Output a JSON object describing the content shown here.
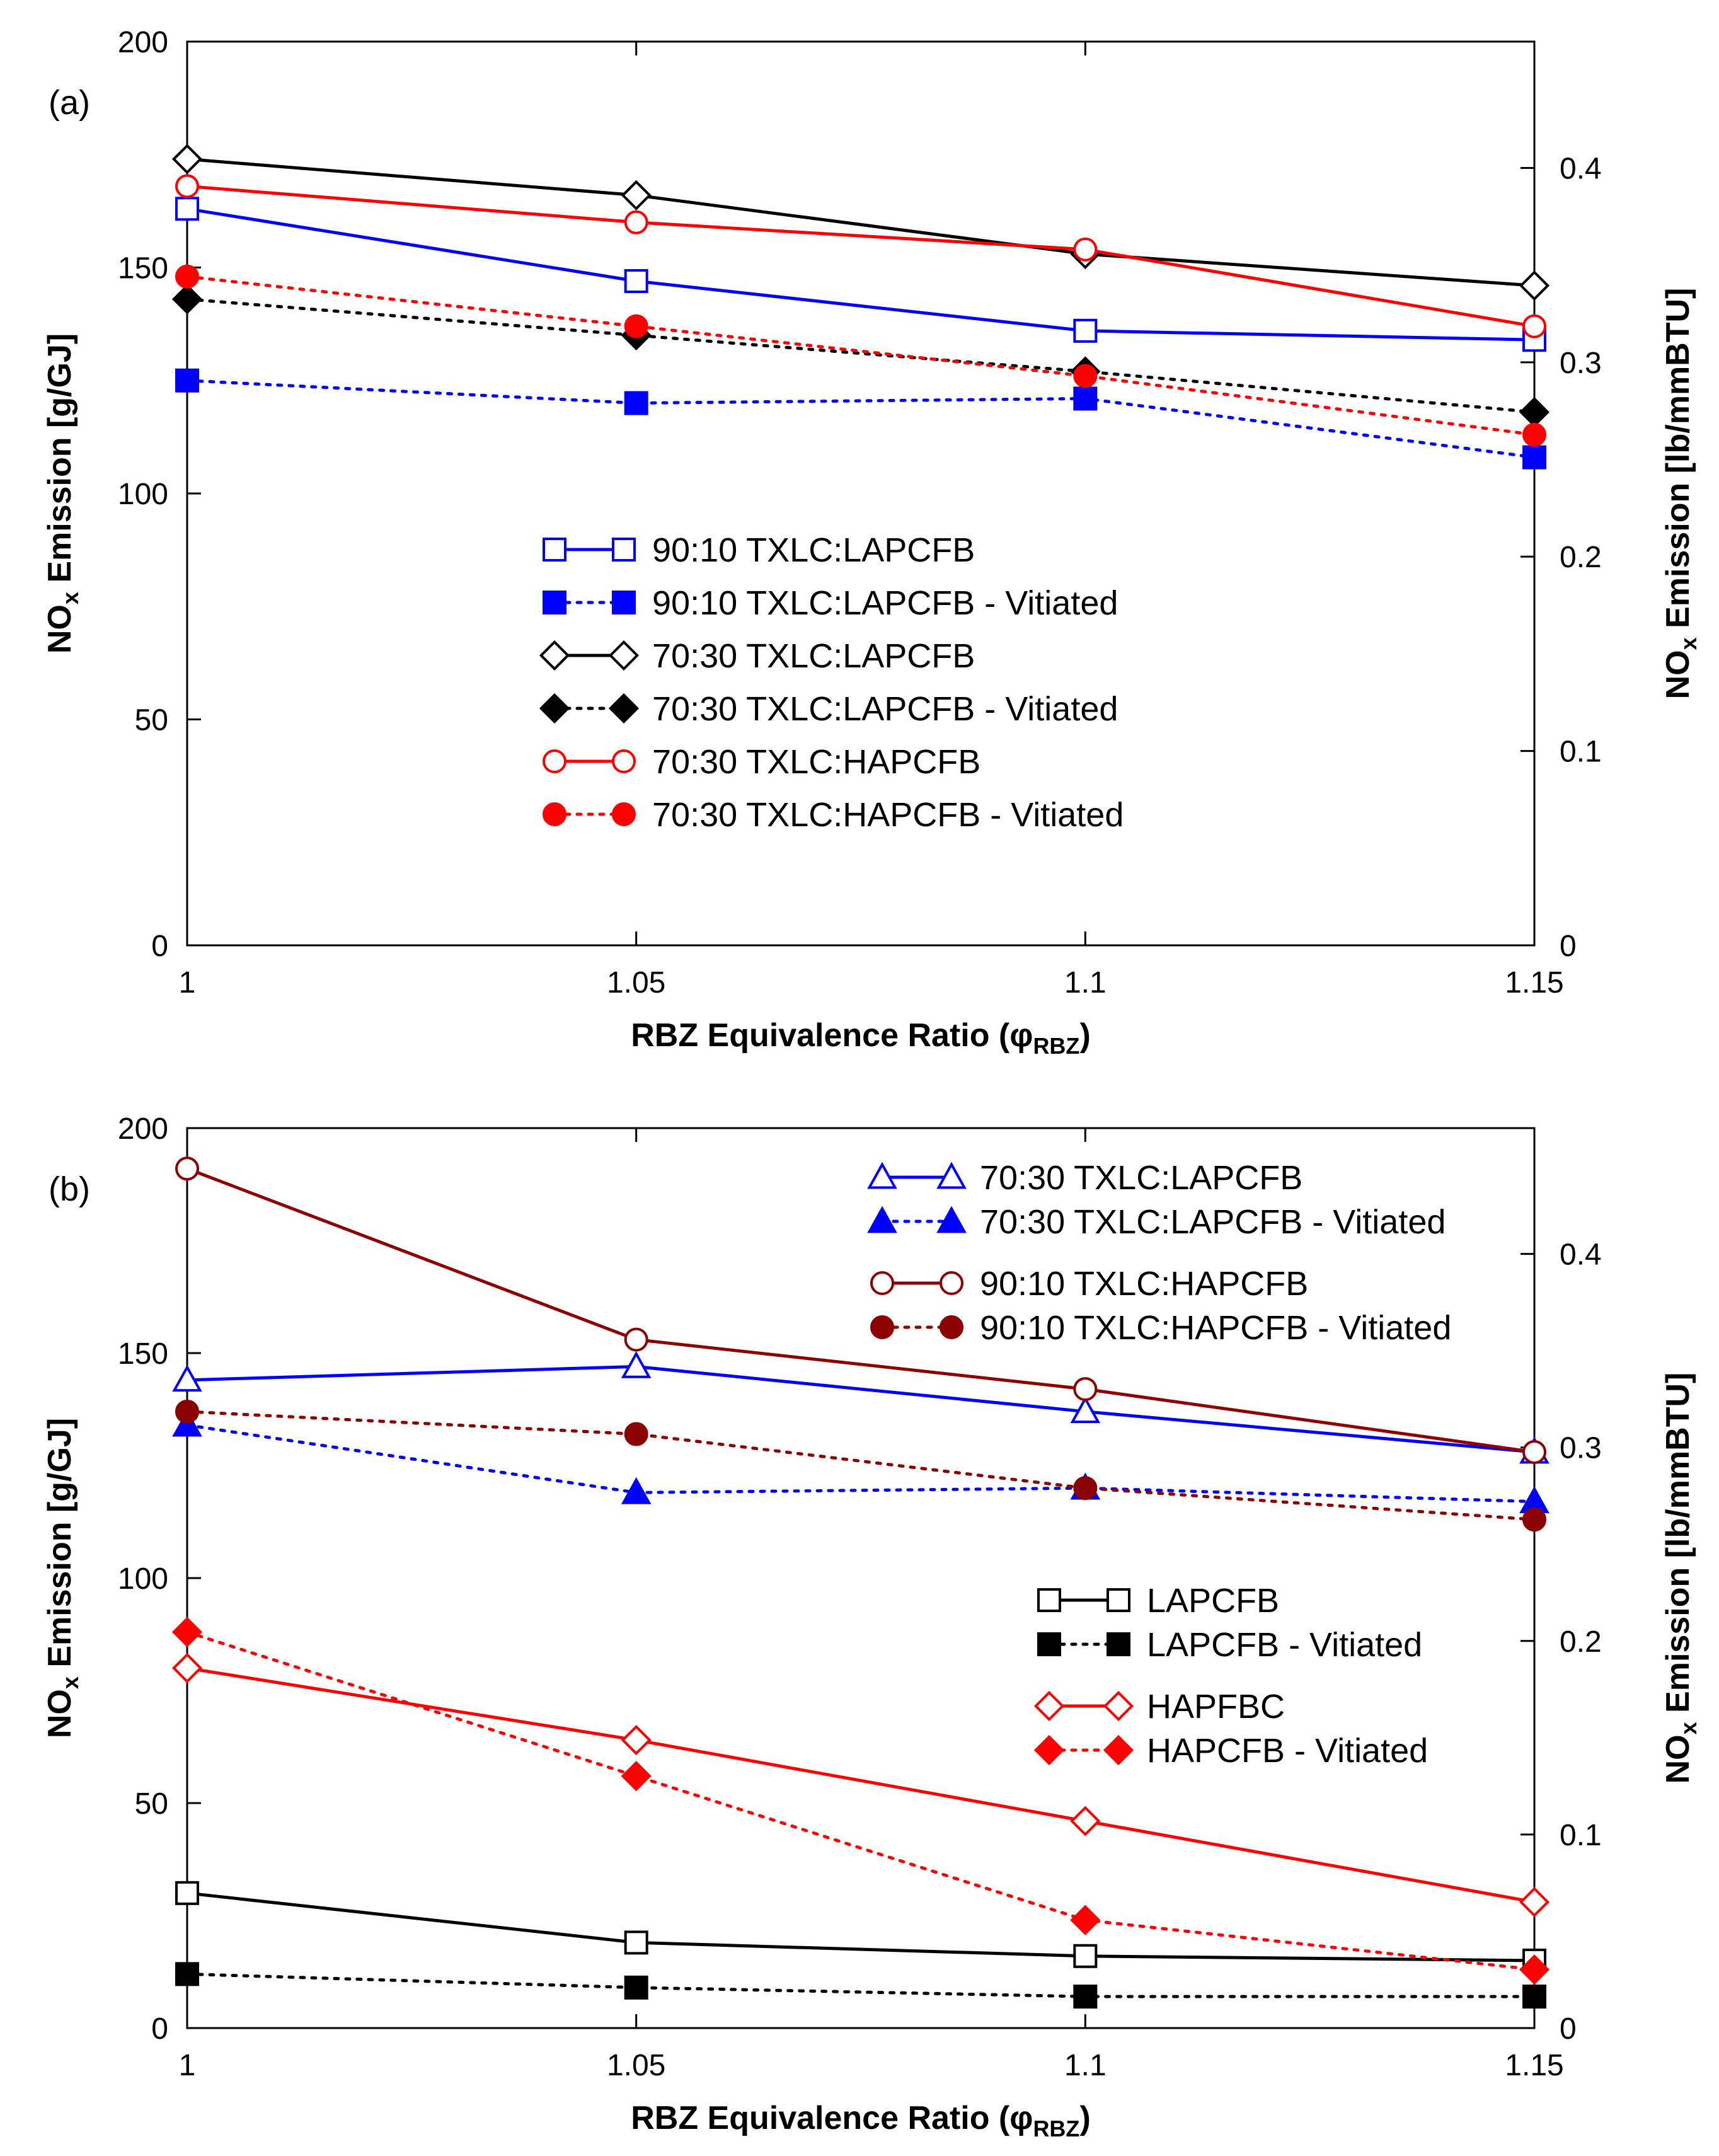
{
  "chart_data": [
    {
      "type": "line",
      "panel_label": "(a)",
      "xlabel_main": "RBZ Equivalence Ratio (",
      "xlabel_phi": "φ",
      "xlabel_sub": "RBZ",
      "xlabel_close": ")",
      "ylabel_main": "NO",
      "ylabel_sub": "x",
      "ylabel_rest": " Emission [g/GJ]",
      "y2label_main": "NO",
      "y2label_sub": "x",
      "y2label_rest": " Emission [lb/mmBTU]",
      "xlim": [
        1,
        1.15
      ],
      "ylim": [
        0,
        200
      ],
      "y2lim": [
        0,
        0.465
      ],
      "x": [
        1,
        1.05,
        1.1,
        1.15
      ],
      "x_tick_labels": [
        "1",
        "1.05",
        "1.1",
        "1.15"
      ],
      "y_ticks": [
        0,
        50,
        100,
        150,
        200
      ],
      "y_tick_labels": [
        "0",
        "50",
        "100",
        "150",
        "200"
      ],
      "y2_ticks": [
        0,
        0.1,
        0.2,
        0.3,
        0.4
      ],
      "y2_tick_labels": [
        "0",
        "0.1",
        "0.2",
        "0.3",
        "0.4"
      ],
      "legend_position": "center",
      "series": [
        {
          "name": "90:10 TXLC:LAPCFB",
          "color": "#0000ff",
          "dash": "solid",
          "marker": "square",
          "filled": false,
          "values": [
            163,
            147,
            136,
            134
          ]
        },
        {
          "name": "90:10 TXLC:LAPCFB - Vitiated",
          "color": "#0000ff",
          "dash": "dotted",
          "marker": "square",
          "filled": true,
          "values": [
            125,
            120,
            121,
            108
          ]
        },
        {
          "name": "70:30 TXLC:LAPCFB",
          "color": "#000000",
          "dash": "solid",
          "marker": "diamond",
          "filled": false,
          "values": [
            174,
            166,
            153,
            146
          ]
        },
        {
          "name": "70:30 TXLC:LAPCFB - Vitiated",
          "color": "#000000",
          "dash": "dotted",
          "marker": "diamond",
          "filled": true,
          "values": [
            143,
            135,
            127,
            118
          ]
        },
        {
          "name": "70:30 TXLC:HAPCFB",
          "color": "#ff0000",
          "dash": "solid",
          "marker": "circle",
          "filled": false,
          "values": [
            168,
            160,
            154,
            137
          ]
        },
        {
          "name": "70:30 TXLC:HAPCFB - Vitiated",
          "color": "#ff0000",
          "dash": "dotted",
          "marker": "circle",
          "filled": true,
          "values": [
            148,
            137,
            126,
            113
          ]
        }
      ]
    },
    {
      "type": "line",
      "panel_label": "(b)",
      "xlabel_main": "RBZ Equivalence Ratio (",
      "xlabel_phi": "φ",
      "xlabel_sub": "RBZ",
      "xlabel_close": ")",
      "ylabel_main": "NO",
      "ylabel_sub": "x",
      "ylabel_rest": " Emission [g/GJ]",
      "y2label_main": "NO",
      "y2label_sub": "x",
      "y2label_rest": " Emission [lb/mmBTU]",
      "xlim": [
        1,
        1.15
      ],
      "ylim": [
        0,
        200
      ],
      "y2lim": [
        0,
        0.465
      ],
      "x": [
        1,
        1.05,
        1.1,
        1.15
      ],
      "x_tick_labels": [
        "1",
        "1.05",
        "1.1",
        "1.15"
      ],
      "y_ticks": [
        0,
        50,
        100,
        150,
        200
      ],
      "y_tick_labels": [
        "0",
        "50",
        "100",
        "150",
        "200"
      ],
      "y2_ticks": [
        0,
        0.1,
        0.2,
        0.3,
        0.4
      ],
      "y2_tick_labels": [
        "0",
        "0.1",
        "0.2",
        "0.3",
        "0.4"
      ],
      "legend_position": "top-right and center-right",
      "series": [
        {
          "name": "70:30 TXLC:LAPCFB",
          "color": "#0000ff",
          "dash": "solid",
          "marker": "triangle",
          "filled": false,
          "values": [
            144,
            147,
            137,
            128
          ]
        },
        {
          "name": "70:30 TXLC:LAPCFB - Vitiated",
          "color": "#0000ff",
          "dash": "dotted",
          "marker": "triangle",
          "filled": true,
          "values": [
            134,
            119,
            120,
            117
          ]
        },
        {
          "name": "90:10 TXLC:HAPCFB",
          "color": "#8b0000",
          "dash": "solid",
          "marker": "circle",
          "filled": false,
          "values": [
            191,
            153,
            142,
            128
          ]
        },
        {
          "name": "90:10 TXLC:HAPCFB - Vitiated",
          "color": "#8b0000",
          "dash": "dotted",
          "marker": "circle",
          "filled": true,
          "values": [
            137,
            132,
            120,
            113
          ]
        },
        {
          "name": "LAPCFB",
          "color": "#000000",
          "dash": "solid",
          "marker": "square",
          "filled": false,
          "values": [
            30,
            19,
            16,
            15
          ]
        },
        {
          "name": "LAPCFB - Vitiated",
          "color": "#000000",
          "dash": "dotted",
          "marker": "square",
          "filled": true,
          "values": [
            12,
            9,
            7,
            7
          ]
        },
        {
          "name": "HAPFBC",
          "color": "#ff0000",
          "dash": "solid",
          "marker": "diamond",
          "filled": false,
          "values": [
            80,
            64,
            46,
            28
          ]
        },
        {
          "name": "HAPCFB - Vitiated",
          "color": "#ff0000",
          "dash": "dotted",
          "marker": "diamond",
          "filled": true,
          "values": [
            88,
            56,
            24,
            13
          ]
        }
      ]
    }
  ]
}
